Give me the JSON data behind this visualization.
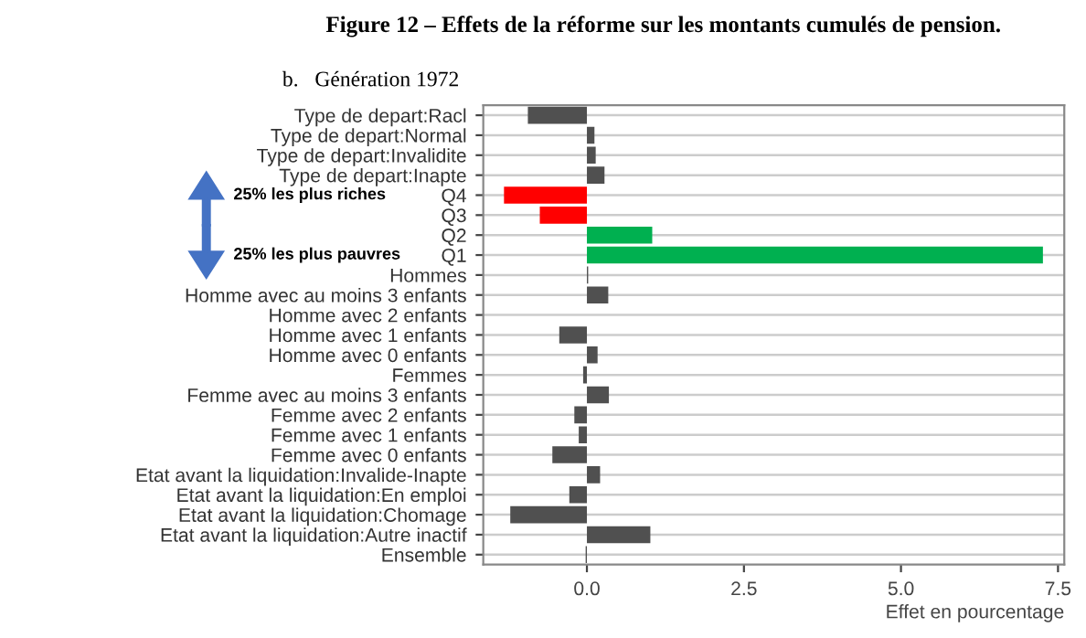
{
  "chart_data": {
    "type": "bar",
    "orientation": "horizontal",
    "title": "Figure 12 – Effets de la réforme sur les montants cumulés de pension.",
    "subtitle": "b.   Génération 1972",
    "xlabel": "Effet en pourcentage",
    "categories": [
      "Type de depart:Racl",
      "Type de depart:Normal",
      "Type de depart:Invalidite",
      "Type de depart:Inapte",
      "Q4",
      "Q3",
      "Q2",
      "Q1",
      "Hommes",
      "Homme avec au moins 3 enfants",
      "Homme avec 2 enfants",
      "Homme avec 1 enfants",
      "Homme avec 0 enfants",
      "Femmes",
      "Femme avec au moins 3 enfants",
      "Femme avec 2 enfants",
      "Femme avec 1 enfants",
      "Femme avec 0 enfants",
      "Etat avant la liquidation:Invalide-Inapte",
      "Etat avant la liquidation:En emploi",
      "Etat avant la liquidation:Chomage",
      "Etat avant la liquidation:Autre inactif",
      "Ensemble"
    ],
    "values": [
      -0.94,
      0.12,
      0.14,
      0.28,
      -1.32,
      -0.75,
      1.04,
      7.26,
      0.02,
      0.34,
      0,
      -0.44,
      0.17,
      -0.06,
      0.35,
      -0.2,
      -0.13,
      -0.55,
      0.21,
      -0.28,
      -1.22,
      1.01,
      -0.02
    ],
    "colors": [
      "#505050",
      "#505050",
      "#505050",
      "#505050",
      "#ff0000",
      "#ff0000",
      "#00b050",
      "#00b050",
      "#505050",
      "#505050",
      "#505050",
      "#505050",
      "#505050",
      "#505050",
      "#505050",
      "#505050",
      "#505050",
      "#505050",
      "#505050",
      "#505050",
      "#505050",
      "#505050",
      "#505050"
    ],
    "xlim": [
      -1.65,
      7.6
    ],
    "xticks": [
      {
        "value": 0,
        "label": "0.0"
      },
      {
        "value": 2.5,
        "label": "2.5"
      },
      {
        "value": 5,
        "label": "5.0"
      },
      {
        "value": 7.5,
        "label": "7.5"
      }
    ],
    "grid": "y",
    "annotations": [
      "25% les plus riches",
      "25% les plus pauvres"
    ]
  }
}
